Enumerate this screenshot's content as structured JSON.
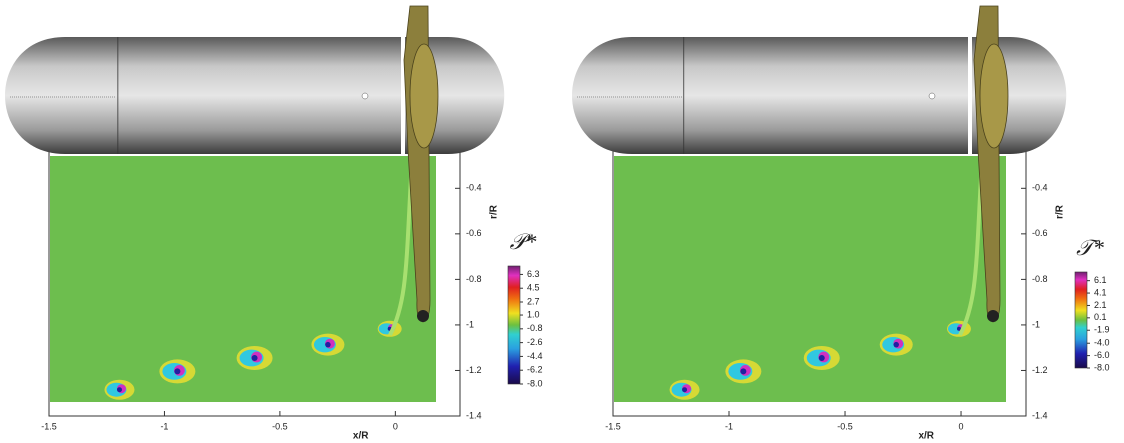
{
  "chart_data": [
    {
      "type": "contour",
      "x_label": "x/R",
      "y_label": "r/R",
      "xlim": [
        -1.5,
        0.28
      ],
      "ylim": [
        -1.4,
        -0.1
      ],
      "xticks": [
        -1.5,
        -1,
        -0.5,
        0
      ],
      "yticks": [
        -0.4,
        -0.6,
        -0.8,
        -1,
        -1.2,
        -1.4
      ],
      "colorbar": {
        "title": "𝒫*",
        "clim": [
          -8.0,
          7.4
        ],
        "ticks": [
          {
            "value": 6.3,
            "label": "6.3"
          },
          {
            "value": 4.5,
            "label": "4.5"
          },
          {
            "value": 2.7,
            "label": "2.7"
          },
          {
            "value": 1.0,
            "label": "1.0"
          },
          {
            "value": -0.8,
            "label": "-0.8"
          },
          {
            "value": -2.6,
            "label": "-2.6"
          },
          {
            "value": -4.4,
            "label": "-4.4"
          },
          {
            "value": -6.2,
            "label": "-6.2"
          },
          {
            "value": -8.0,
            "label": "-8.0"
          }
        ]
      }
    },
    {
      "type": "contour",
      "x_label": "x/R",
      "y_label": "r/R",
      "xlim": [
        -1.5,
        0.28
      ],
      "ylim": [
        -1.4,
        -0.1
      ],
      "xticks": [
        -1.5,
        -1,
        -0.5,
        0
      ],
      "yticks": [
        -0.4,
        -0.6,
        -0.8,
        -1,
        -1.2,
        -1.4
      ],
      "colorbar": {
        "title": "𝒯*",
        "clim": [
          -8.0,
          7.5
        ],
        "ticks": [
          {
            "value": 6.1,
            "label": "6.1"
          },
          {
            "value": 4.1,
            "label": "4.1"
          },
          {
            "value": 2.1,
            "label": "2.1"
          },
          {
            "value": 0.1,
            "label": "0.1"
          },
          {
            "value": -1.9,
            "label": "-1.9"
          },
          {
            "value": -4.0,
            "label": "-4.0"
          },
          {
            "value": -6.0,
            "label": "-6.0"
          },
          {
            "value": -8.0,
            "label": "-8.0"
          }
        ]
      }
    }
  ]
}
